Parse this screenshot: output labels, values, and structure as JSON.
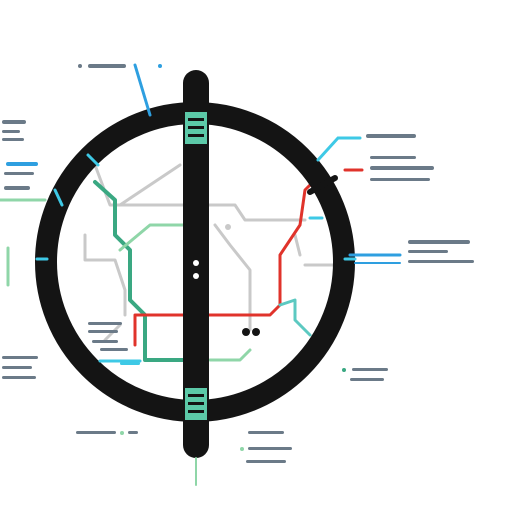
{
  "colors": {
    "background": "#ffffff",
    "ring": "#141414",
    "grey_line": "#c9c9c9",
    "green_line": "#3aa882",
    "light_green_line": "#8fd6a8",
    "red_line": "#e0332b",
    "teal_line": "#5cc9c1",
    "blue_line": "#2e9fe0",
    "cyan_accent": "#3ec9e6",
    "tiny_label": "#6b7a88"
  },
  "diagram": {
    "shape": "circular ring with vertical center bar",
    "lines": [
      "grey",
      "green",
      "light-green",
      "red",
      "teal"
    ],
    "stations": 2,
    "label_clusters": 14
  }
}
